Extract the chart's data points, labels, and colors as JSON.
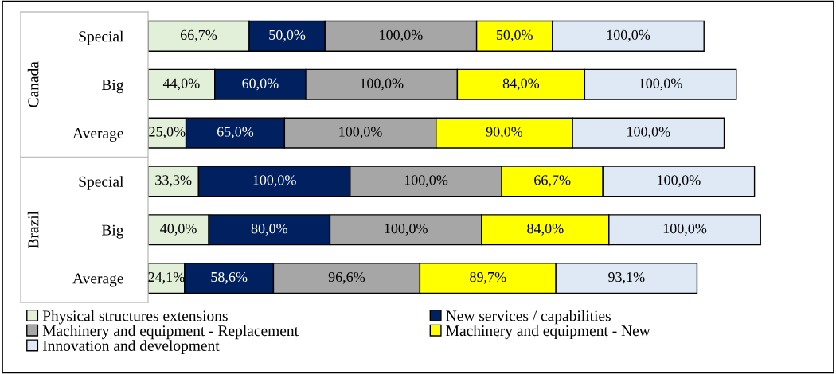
{
  "chart_data": {
    "type": "bar",
    "orientation": "horizontal",
    "stacked": true,
    "tick_labels": "y",
    "grid": false,
    "legend": "bottom",
    "categories": [
      "Special",
      "Big",
      "Average",
      "Special",
      "Big",
      "Average"
    ],
    "annotations": [
      "Canada",
      "Brazil"
    ],
    "series": [
      {
        "name": "Physical structures extensions",
        "color": "#e2f0d9",
        "values": [
          66.7,
          44.0,
          25.0,
          33.3,
          40.0,
          24.1
        ],
        "value_labels": [
          "66,7%",
          "44,0%",
          "25,0%",
          "33,3%",
          "40,0%",
          "24,1%"
        ]
      },
      {
        "name": "New services / capabilities",
        "color": "#002060",
        "values": [
          50.0,
          60.0,
          65.0,
          100.0,
          80.0,
          58.6
        ],
        "value_labels": [
          "50,0%",
          "60,0%",
          "65,0%",
          "100,0%",
          "80,0%",
          "58,6%"
        ]
      },
      {
        "name": "Machinery and equipment - Replacement",
        "color": "#a6a6a6",
        "values": [
          100.0,
          100.0,
          100.0,
          100.0,
          100.0,
          96.6
        ],
        "value_labels": [
          "100,0%",
          "100,0%",
          "100,0%",
          "100,0%",
          "100,0%",
          "96,6%"
        ]
      },
      {
        "name": "Machinery and equipment - New",
        "color": "#ffff00",
        "values": [
          50.0,
          84.0,
          90.0,
          66.7,
          84.0,
          89.7
        ],
        "value_labels": [
          "50,0%",
          "84,0%",
          "90,0%",
          "66,7%",
          "84,0%",
          "89,7%"
        ]
      },
      {
        "name": "Innovation and development",
        "color": "#dee9f5",
        "values": [
          100.0,
          100.0,
          100.0,
          100.0,
          100.0,
          93.1
        ],
        "value_labels": [
          "100,0%",
          "100,0%",
          "100,0%",
          "100,0%",
          "100,0%",
          "93,1%"
        ]
      }
    ]
  }
}
